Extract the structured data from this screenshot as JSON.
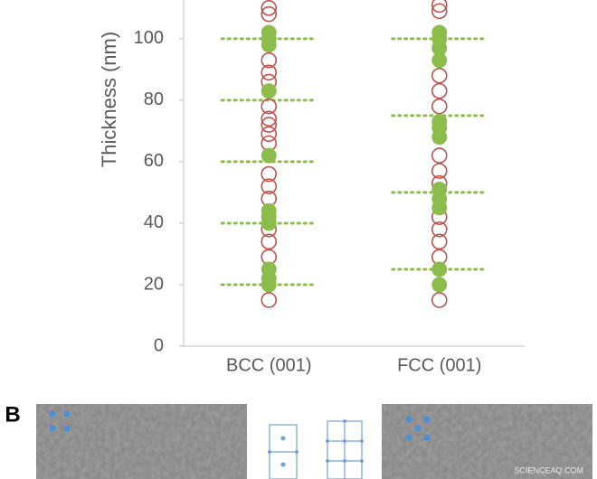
{
  "chart_data": {
    "type": "strip",
    "y_label": "Thickness (nm)",
    "categories": [
      "BCC (001)",
      "FCC (001)"
    ],
    "ylim": [
      0,
      112.6
    ],
    "yticks": [
      0,
      20,
      40,
      60,
      80,
      100
    ],
    "series": [
      {
        "color": "#c0504d",
        "marker": "open",
        "values": [
          [
            15,
            29,
            34,
            38,
            48,
            52,
            56,
            66,
            69,
            72,
            74,
            78,
            86,
            89,
            93,
            108,
            110
          ],
          [
            15,
            29,
            34,
            38,
            42,
            53,
            57,
            62,
            78,
            83,
            88,
            109,
            111
          ]
        ]
      },
      {
        "color": "#8cbd4a",
        "marker": "filled",
        "values": [
          [
            20,
            22,
            25,
            40,
            42,
            44,
            62,
            83,
            98,
            100,
            102
          ],
          [
            20,
            25,
            45,
            48,
            51,
            68,
            71,
            73,
            93,
            97,
            100,
            102
          ]
        ]
      }
    ],
    "reference_lines": {
      "color": "#8cbd4a",
      "values": [
        [
          20,
          40,
          60,
          80,
          100
        ],
        [
          25,
          50,
          75,
          100
        ]
      ]
    }
  },
  "panel_b": {
    "label": "B",
    "watermark": "SCIENCEAQ.COM"
  }
}
